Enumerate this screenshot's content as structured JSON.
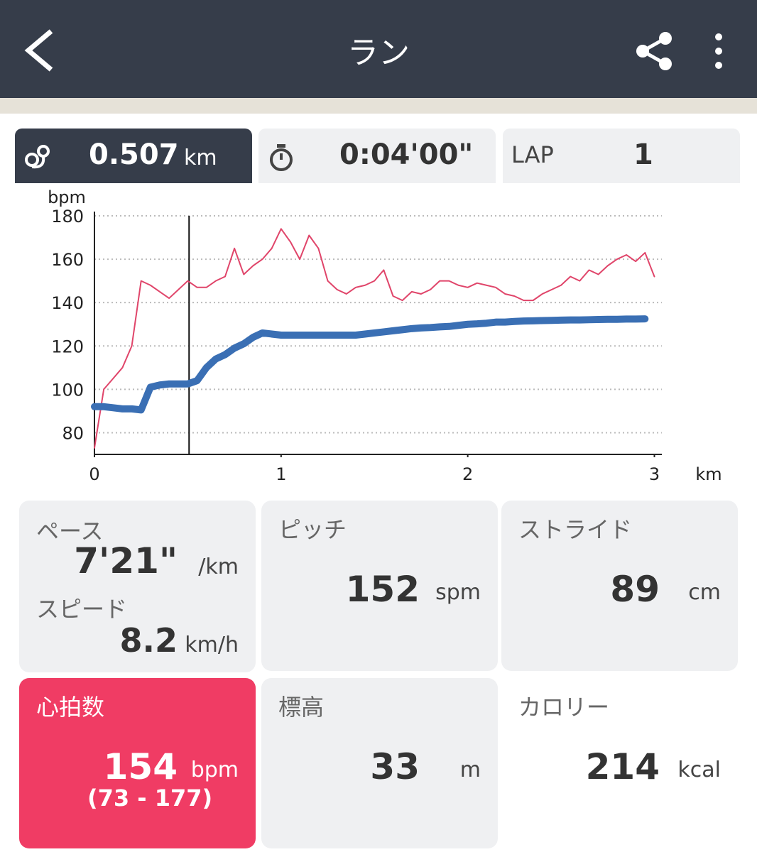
{
  "header": {
    "title": "ラン"
  },
  "tabs": {
    "distance": {
      "value": 0.507,
      "unit": "km"
    },
    "time": {
      "value": "0:04'00\""
    },
    "lap": {
      "label": "LAP",
      "value": 1
    }
  },
  "chart_data": {
    "type": "line",
    "y_label": "bpm",
    "x_label": "km",
    "xlim": [
      0,
      3.04
    ],
    "ylim": [
      70,
      180
    ],
    "xticks": [
      0,
      1,
      2,
      3
    ],
    "yticks": [
      80,
      100,
      120,
      140,
      160,
      180
    ],
    "grid": true,
    "x": [
      0,
      0.05,
      0.1,
      0.15,
      0.2,
      0.25,
      0.3,
      0.35,
      0.4,
      0.45,
      0.5,
      0.55,
      0.6,
      0.65,
      0.7,
      0.75,
      0.8,
      0.85,
      0.9,
      0.95,
      1.0,
      1.05,
      1.1,
      1.15,
      1.2,
      1.25,
      1.3,
      1.35,
      1.4,
      1.45,
      1.5,
      1.55,
      1.6,
      1.65,
      1.7,
      1.75,
      1.8,
      1.85,
      1.9,
      1.95,
      2.0,
      2.05,
      2.1,
      2.15,
      2.2,
      2.25,
      2.3,
      2.35,
      2.4,
      2.45,
      2.5,
      2.55,
      2.6,
      2.65,
      2.7,
      2.75,
      2.8,
      2.85,
      2.9,
      2.95,
      3.0
    ],
    "series": [
      {
        "color": "#e0456a",
        "width": 2,
        "values": [
          73,
          100,
          105,
          110,
          120,
          150,
          148,
          145,
          142,
          146,
          150,
          147,
          147,
          150,
          152,
          165,
          153,
          157,
          160,
          165,
          174,
          168,
          160,
          171,
          165,
          150,
          146,
          144,
          147,
          148,
          150,
          155,
          143,
          141,
          145,
          144,
          146,
          150,
          150,
          148,
          147,
          149,
          148,
          147,
          144,
          143,
          141,
          141,
          144,
          146,
          148,
          152,
          150,
          155,
          153,
          157,
          160,
          162,
          159,
          163,
          152
        ]
      },
      {
        "color": "#3a6fb4",
        "width": 10,
        "values": [
          92,
          92,
          91.5,
          91,
          91,
          90.5,
          101,
          102,
          102.5,
          102.5,
          102.5,
          104,
          110,
          114,
          116,
          119,
          121,
          124,
          126,
          125.5,
          125,
          125,
          125,
          125,
          125,
          125,
          125,
          125,
          125,
          125.5,
          126,
          126.5,
          127,
          127.5,
          128,
          128.3,
          128.5,
          128.8,
          129,
          129.5,
          130,
          130.2,
          130.5,
          131,
          131,
          131.3,
          131.5,
          131.6,
          131.7,
          131.8,
          131.9,
          132,
          132,
          132.1,
          132.2,
          132.3,
          132.3,
          132.4,
          132.4,
          132.5,
          null
        ]
      }
    ]
  },
  "stats": [
    {
      "label": "ペース",
      "value": "7'21\"",
      "unit": "/km"
    },
    {
      "label": "スピード",
      "value": 8.2,
      "unit": "km/h"
    },
    {
      "label": "ピッチ",
      "value": 152,
      "unit": "spm"
    },
    {
      "label": "ストライド",
      "value": 89,
      "unit": "cm"
    },
    {
      "label": "心拍数",
      "value": 154,
      "unit": "bpm",
      "range": "(73 - 177)"
    },
    {
      "label": "標高",
      "value": 33,
      "unit": "m"
    },
    {
      "label": "カロリー",
      "value": 214,
      "unit": "kcal"
    }
  ]
}
